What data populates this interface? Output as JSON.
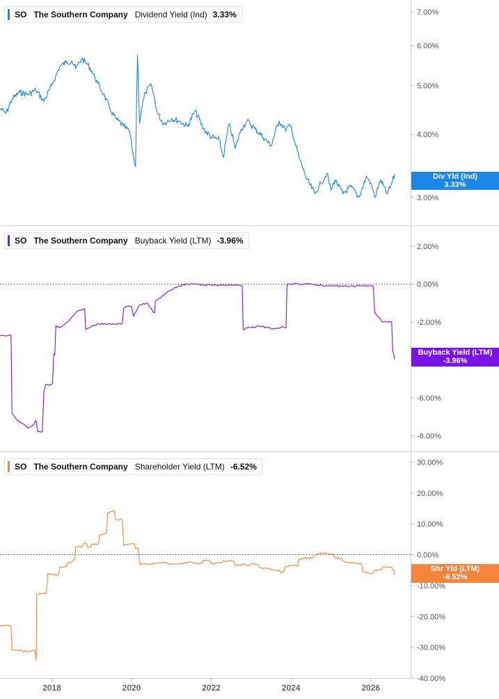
{
  "colors": {
    "dividend": "#1a86e8",
    "buyback": "#7b12e8",
    "shareholder": "#f7843c",
    "axis_text": "#555555",
    "divider": "#d4d4d4"
  },
  "panels": [
    {
      "legend": {
        "ticker": "SO",
        "company": "The Southern Company",
        "metric": "Dividend Yield (Ind)",
        "value": "3.33%"
      },
      "tag": {
        "line1": "Div Yld (Ind)",
        "line2": "3.33%"
      }
    },
    {
      "legend": {
        "ticker": "SO",
        "company": "The Southern Company",
        "metric": "Buyback Yield (LTM)",
        "value": "-3.96%"
      },
      "tag": {
        "line1": "Buyback Yield (LTM)",
        "line2": "-3.96%"
      }
    },
    {
      "legend": {
        "ticker": "SO",
        "company": "The Southern Company",
        "metric": "Shareholder Yield (LTM)",
        "value": "-6.52%"
      },
      "tag": {
        "line1": "Shr Yld (LTM)",
        "line2": "-6.52%"
      }
    }
  ],
  "chart_data": [
    {
      "type": "line",
      "series": [
        {
          "name": "Dividend Yield (Ind)",
          "x": [
            2016.7,
            2016.85,
            2017.0,
            2017.2,
            2017.4,
            2017.6,
            2017.8,
            2018.0,
            2018.2,
            2018.35,
            2018.5,
            2018.6,
            2018.75,
            2018.9,
            2019.0,
            2019.15,
            2019.3,
            2019.45,
            2019.6,
            2019.8,
            2019.95,
            2020.05,
            2020.1,
            2020.15,
            2020.2,
            2020.25,
            2020.35,
            2020.5,
            2020.65,
            2020.8,
            2021.0,
            2021.2,
            2021.4,
            2021.6,
            2021.8,
            2022.0,
            2022.2,
            2022.3,
            2022.45,
            2022.6,
            2022.75,
            2022.9,
            2023.1,
            2023.3,
            2023.5,
            2023.7,
            2023.85,
            2024.0,
            2024.1,
            2024.2,
            2024.4,
            2024.6,
            2024.75,
            2024.9,
            2025.0,
            2025.1,
            2025.3,
            2025.5,
            2025.7,
            2025.9,
            2026.0,
            2026.1,
            2026.25,
            2026.4,
            2026.5,
            2026.6
          ],
          "y": [
            4.5,
            4.4,
            4.7,
            4.85,
            4.8,
            4.9,
            4.65,
            5.0,
            5.45,
            5.55,
            5.6,
            5.4,
            5.65,
            5.5,
            5.35,
            5.05,
            4.8,
            4.5,
            4.3,
            4.15,
            4.05,
            3.6,
            3.45,
            5.75,
            4.2,
            4.5,
            4.85,
            5.0,
            4.4,
            4.2,
            4.3,
            4.25,
            4.15,
            4.45,
            4.1,
            3.95,
            3.9,
            3.6,
            4.2,
            3.75,
            4.1,
            4.25,
            4.1,
            3.95,
            3.8,
            4.25,
            4.1,
            4.15,
            3.85,
            3.6,
            3.25,
            3.05,
            3.2,
            3.35,
            3.1,
            3.25,
            3.05,
            3.15,
            3.0,
            3.3,
            3.2,
            3.0,
            3.25,
            3.05,
            3.15,
            3.33
          ]
        }
      ],
      "ylim": [
        2.85,
        7.2
      ],
      "yticks": [
        "7.00%",
        "6.00%",
        "5.00%",
        "4.00%",
        "3.00%"
      ]
    },
    {
      "type": "line",
      "series": [
        {
          "name": "Buyback Yield (LTM)",
          "x": [
            2016.7,
            2016.95,
            2017.0,
            2017.1,
            2017.2,
            2017.3,
            2017.4,
            2017.5,
            2017.6,
            2017.65,
            2017.8,
            2017.85,
            2018.05,
            2018.1,
            2018.2,
            2018.4,
            2018.6,
            2018.8,
            2018.85,
            2019.0,
            2019.2,
            2019.4,
            2019.6,
            2019.8,
            2019.85,
            2020.0,
            2020.05,
            2020.2,
            2020.4,
            2020.55,
            2020.6,
            2020.8,
            2021.0,
            2021.2,
            2021.4,
            2021.6,
            2021.8,
            2022.0,
            2022.2,
            2022.4,
            2022.6,
            2022.75,
            2022.8,
            2022.9,
            2023.0,
            2023.2,
            2023.4,
            2023.6,
            2023.8,
            2023.85,
            2023.9,
            2024.2,
            2024.5,
            2024.8,
            2025.1,
            2025.4,
            2025.7,
            2025.9,
            2026.0,
            2026.1,
            2026.3,
            2026.5,
            2026.55,
            2026.6
          ],
          "y": [
            -2.7,
            -2.7,
            -6.8,
            -7.1,
            -7.3,
            -7.4,
            -7.6,
            -7.5,
            -7.2,
            -7.8,
            -5.7,
            -5.3,
            -3.7,
            -2.2,
            -2.3,
            -2.0,
            -1.5,
            -1.3,
            -2.4,
            -2.2,
            -2.1,
            -2.1,
            -2.1,
            -1.3,
            -1.2,
            -1.2,
            -1.7,
            -1.1,
            -1.0,
            -1.5,
            -0.9,
            -0.6,
            -0.3,
            -0.1,
            0.0,
            0.0,
            -0.05,
            -0.05,
            -0.05,
            -0.05,
            -0.05,
            -0.1,
            -2.4,
            -2.3,
            -2.3,
            -2.2,
            -2.3,
            -2.35,
            -2.25,
            -2.3,
            0.0,
            0.0,
            0.0,
            -0.1,
            -0.1,
            -0.1,
            -0.1,
            -0.1,
            -0.1,
            -1.5,
            -2.0,
            -2.0,
            -3.5,
            -3.96
          ]
        }
      ],
      "ylim": [
        -8.5,
        2.7
      ],
      "yticks": [
        "2.00%",
        "0.00%",
        "-2.00%",
        "-4.00%",
        "-6.00%",
        "-8.00%"
      ],
      "reference_line": 0
    },
    {
      "type": "line",
      "series": [
        {
          "name": "Shareholder Yield (LTM)",
          "x": [
            2016.7,
            2016.95,
            2017.0,
            2017.2,
            2017.4,
            2017.55,
            2017.6,
            2017.62,
            2017.75,
            2017.9,
            2018.0,
            2018.2,
            2018.4,
            2018.55,
            2018.6,
            2018.8,
            2018.9,
            2019.0,
            2019.2,
            2019.35,
            2019.4,
            2019.5,
            2019.6,
            2019.8,
            2020.0,
            2020.1,
            2020.2,
            2020.3,
            2020.5,
            2020.8,
            2021.0,
            2021.2,
            2021.4,
            2021.6,
            2021.8,
            2022.0,
            2022.2,
            2022.4,
            2022.6,
            2022.8,
            2022.9,
            2023.0,
            2023.2,
            2023.4,
            2023.6,
            2023.75,
            2023.8,
            2023.85,
            2024.0,
            2024.2,
            2024.4,
            2024.6,
            2024.8,
            2024.95,
            2025.1,
            2025.3,
            2025.5,
            2025.7,
            2025.8,
            2025.95,
            2026.1,
            2026.3,
            2026.5,
            2026.55,
            2026.6
          ],
          "y": [
            -23.0,
            -23.0,
            -31.0,
            -31.0,
            -31.5,
            -31.0,
            -34.0,
            -13.0,
            -12.5,
            -6.0,
            -6.5,
            -4.0,
            -2.5,
            -1.5,
            2.5,
            3.5,
            2.5,
            3.5,
            6.5,
            7.0,
            13.5,
            14.0,
            11.5,
            3.0,
            3.5,
            2.0,
            -3.0,
            -3.0,
            -3.0,
            -2.5,
            -3.0,
            -3.0,
            -2.5,
            -2.7,
            -2.0,
            -3.0,
            -2.5,
            -2.0,
            -3.5,
            -3.0,
            -3.5,
            -3.0,
            -4.0,
            -4.5,
            -5.0,
            -6.0,
            -5.5,
            -4.0,
            -3.5,
            -1.5,
            -1.0,
            0.0,
            0.5,
            0.2,
            -1.0,
            -2.0,
            -2.5,
            -3.0,
            -5.5,
            -6.0,
            -5.0,
            -4.0,
            -4.0,
            -5.0,
            -6.52
          ]
        }
      ],
      "ylim": [
        -40.0,
        31.0
      ],
      "yticks": [
        "30.00%",
        "20.00%",
        "10.00%",
        "0.00%",
        "-10.00%",
        "-20.00%",
        "-30.00%",
        "-40.00%"
      ],
      "reference_line": 0
    }
  ],
  "xaxis": {
    "min": 2016.7,
    "max": 2027.0,
    "ticks": [
      2018,
      2020,
      2022,
      2024,
      2026
    ],
    "tick_labels": [
      "2018",
      "2020",
      "2022",
      "2024",
      "2026"
    ]
  }
}
